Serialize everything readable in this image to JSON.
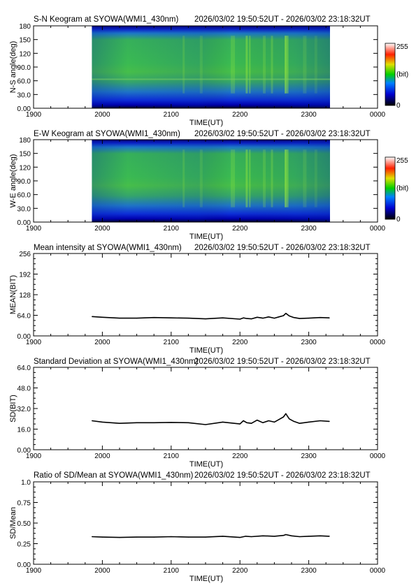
{
  "station": "SYOWA",
  "time_range": "2026/03/02 19:50:52UT - 2026/03/02 23:18:32UT",
  "chart_data": [
    {
      "type": "heatmap",
      "title": "S-N Keogram at SYOWA(WMI1_430nm)",
      "subtitle": "2026/03/02 19:50:52UT - 2026/03/02 23:18:32UT",
      "xlabel": "TIME(UT)",
      "ylabel": "N-S angle(deg)",
      "x_tick_labels": [
        "1900",
        "2000",
        "2100",
        "2200",
        "2300",
        "0000"
      ],
      "y_tick_labels": [
        "0.00",
        "30.0",
        "60.0",
        "90.0",
        "120",
        "150",
        "180"
      ],
      "ylim": [
        0,
        180
      ],
      "data_start": "19:50:52",
      "data_end": "23:18:32",
      "colorbar": {
        "min_label": "0",
        "max_label": "255",
        "unit_label": "(bit)",
        "range": [
          0,
          255
        ]
      }
    },
    {
      "type": "heatmap",
      "title": "E-W Keogram at SYOWA(WMI1_430nm)",
      "subtitle": "2026/03/02 19:50:52UT - 2026/03/02 23:18:32UT",
      "xlabel": "TIME(UT)",
      "ylabel": "W-E angle(deg)",
      "x_tick_labels": [
        "1900",
        "2000",
        "2100",
        "2200",
        "2300",
        "0000"
      ],
      "y_tick_labels": [
        "0.00",
        "30.0",
        "60.0",
        "90.0",
        "120",
        "150",
        "180"
      ],
      "ylim": [
        0,
        180
      ],
      "data_start": "19:50:52",
      "data_end": "23:18:32",
      "colorbar": {
        "min_label": "0",
        "max_label": "255",
        "unit_label": "(bit)",
        "range": [
          0,
          255
        ]
      }
    },
    {
      "type": "line",
      "title": "Mean intensity at SYOWA(WMI1_430nm)",
      "subtitle": "2026/03/02 19:50:52UT - 2026/03/02 23:18:32UT",
      "xlabel": "TIME(UT)",
      "ylabel": "MEAN(BIT)",
      "x_tick_labels": [
        "1900",
        "2000",
        "2100",
        "2200",
        "2300",
        "0000"
      ],
      "y_tick_labels": [
        "0.00",
        "64.0",
        "128",
        "192",
        "256"
      ],
      "ylim": [
        0,
        256
      ],
      "series": [
        {
          "x": [
            "19:51",
            "20:00",
            "20:15",
            "20:30",
            "20:45",
            "21:00",
            "21:15",
            "21:30",
            "21:45",
            "22:00",
            "22:03",
            "22:06",
            "22:10",
            "22:15",
            "22:20",
            "22:25",
            "22:30",
            "22:35",
            "22:38",
            "22:40",
            "22:43",
            "22:47",
            "22:52",
            "23:00",
            "23:10",
            "23:18"
          ],
          "values": [
            60,
            58,
            55,
            55,
            57,
            56,
            55,
            53,
            56,
            52,
            56,
            54,
            53,
            58,
            55,
            59,
            55,
            60,
            63,
            70,
            62,
            57,
            54,
            55,
            57,
            56
          ]
        }
      ]
    },
    {
      "type": "line",
      "title": "Standard Deviation at SYOWA(WMI1_430nm)",
      "subtitle": "2026/03/02 19:50:52UT - 2026/03/02 23:18:32UT",
      "xlabel": "TIME(UT)",
      "ylabel": "SD(BIT)",
      "x_tick_labels": [
        "1900",
        "2000",
        "2100",
        "2200",
        "2300",
        "0000"
      ],
      "y_tick_labels": [
        "0.00",
        "16.0",
        "32.0",
        "48.0",
        "64.0"
      ],
      "ylim": [
        0,
        64
      ],
      "series": [
        {
          "x": [
            "19:51",
            "20:00",
            "20:15",
            "20:30",
            "20:45",
            "21:00",
            "21:15",
            "21:30",
            "21:45",
            "22:00",
            "22:03",
            "22:06",
            "22:10",
            "22:15",
            "22:20",
            "22:25",
            "22:30",
            "22:35",
            "22:38",
            "22:40",
            "22:43",
            "22:47",
            "22:52",
            "23:00",
            "23:10",
            "23:18"
          ],
          "values": [
            22.5,
            21.5,
            20.5,
            21,
            21,
            21.2,
            21,
            19.5,
            21.5,
            20,
            22.5,
            21,
            20.5,
            23,
            21,
            22.5,
            21.5,
            24,
            25.5,
            28,
            24,
            22,
            20.5,
            21.5,
            22.5,
            22
          ]
        }
      ]
    },
    {
      "type": "line",
      "title": "Ratio of SD/Mean at SYOWA(WMI1_430nm)",
      "subtitle": "2026/03/02 19:50:52UT - 2026/03/02 23:18:32UT",
      "xlabel": "TIME(UT)",
      "ylabel": "SD/Mean",
      "x_tick_labels": [
        "1900",
        "2000",
        "2100",
        "2200",
        "2300",
        "0000"
      ],
      "y_tick_labels": [
        "0.00",
        "0.25",
        "0.50",
        "0.75",
        "1.0"
      ],
      "ylim": [
        0,
        1
      ],
      "series": [
        {
          "x": [
            "19:51",
            "20:00",
            "20:15",
            "20:30",
            "20:45",
            "21:00",
            "21:15",
            "21:30",
            "21:45",
            "22:00",
            "22:05",
            "22:10",
            "22:20",
            "22:30",
            "22:38",
            "22:40",
            "22:45",
            "22:52",
            "23:00",
            "23:10",
            "23:18"
          ],
          "values": [
            0.335,
            0.33,
            0.325,
            0.33,
            0.33,
            0.335,
            0.33,
            0.33,
            0.34,
            0.325,
            0.34,
            0.335,
            0.345,
            0.34,
            0.35,
            0.36,
            0.345,
            0.335,
            0.34,
            0.345,
            0.34
          ]
        }
      ]
    }
  ]
}
